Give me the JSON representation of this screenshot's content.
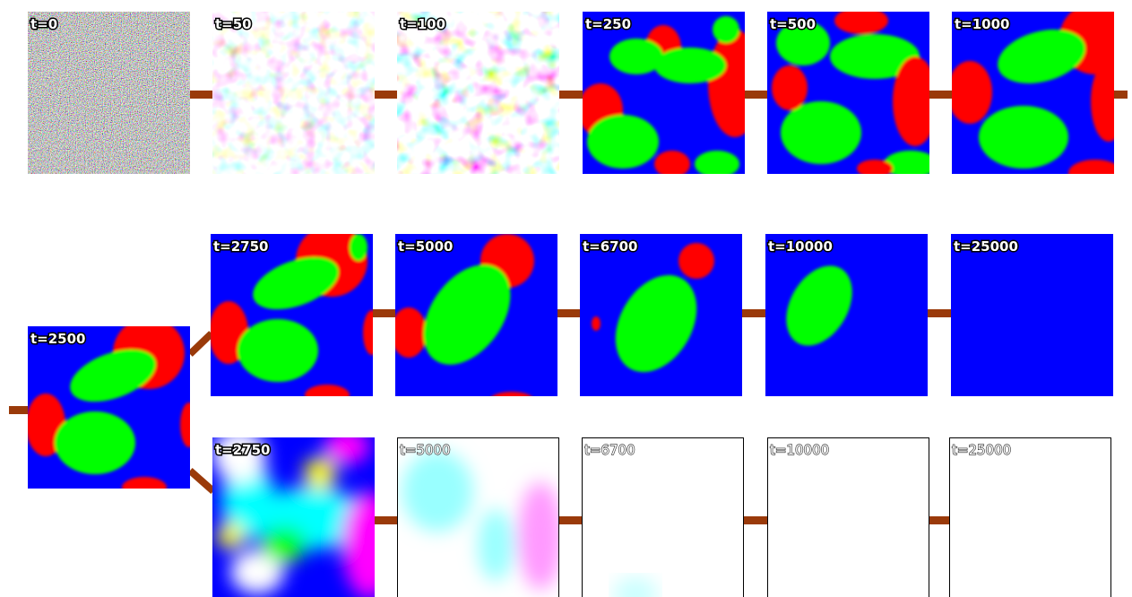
{
  "panels": [
    {
      "label": "t=0"
    },
    {
      "label": "t=50"
    },
    {
      "label": "t=100"
    },
    {
      "label": "t=250"
    },
    {
      "label": "t=500"
    },
    {
      "label": "t=1000"
    },
    {
      "label": "t=2500"
    },
    {
      "label": "t=2750"
    },
    {
      "label": "t=5000"
    },
    {
      "label": "t=6700"
    },
    {
      "label": "t=10000"
    },
    {
      "label": "t=25000"
    },
    {
      "label": "t=2750"
    },
    {
      "label": "t=5000"
    },
    {
      "label": "t=6700"
    },
    {
      "label": "t=10000"
    },
    {
      "label": "t=25000"
    }
  ]
}
